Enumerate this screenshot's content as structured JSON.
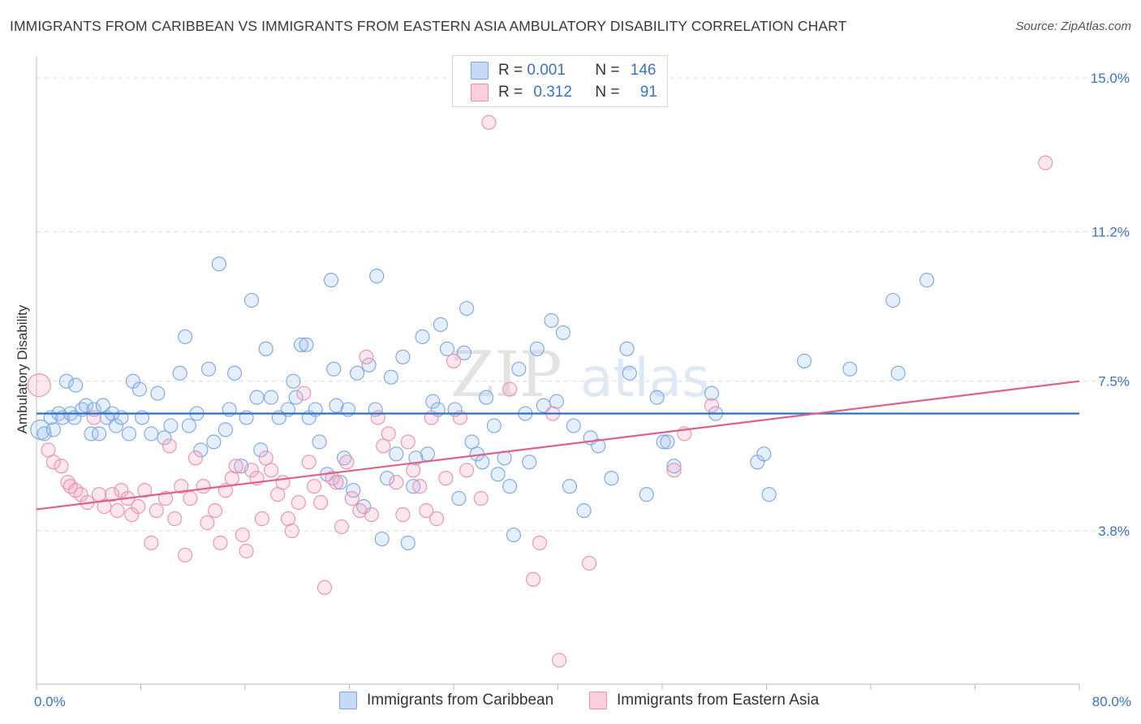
{
  "header": {
    "title": "IMMIGRANTS FROM CARIBBEAN VS IMMIGRANTS FROM EASTERN ASIA AMBULATORY DISABILITY CORRELATION CHART",
    "source": "Source: ZipAtlas.com"
  },
  "legend": {
    "r_label": "R =",
    "n_label": "N =",
    "series": [
      {
        "name": "Immigrants from Caribbean",
        "r": "0.001",
        "n": "146",
        "color": "#9bbef0"
      },
      {
        "name": "Immigrants from Eastern Asia",
        "r": "0.312",
        "n": "91",
        "color": "#f5a9bf"
      }
    ]
  },
  "watermark": {
    "zip": "ZIP",
    "atlas": "atlas"
  },
  "chart_data": {
    "type": "scatter",
    "title": "IMMIGRANTS FROM CARIBBEAN VS IMMIGRANTS FROM EASTERN ASIA AMBULATORY DISABILITY CORRELATION CHART",
    "xlabel": "",
    "ylabel": "Ambulatory Disability",
    "xlim": [
      0,
      80
    ],
    "ylim": [
      0,
      15.5
    ],
    "x_tick_labels": [
      "0.0%",
      "80.0%"
    ],
    "y_ticks": [
      3.8,
      7.5,
      11.2,
      15.0
    ],
    "y_tick_labels": [
      "3.8%",
      "7.5%",
      "11.2%",
      "15.0%"
    ],
    "grid": "horizontal dashed",
    "legend_position": "top-center",
    "series": [
      {
        "name": "Immigrants from Caribbean",
        "color": "#7aa6e6",
        "trend": {
          "x": [
            0,
            80
          ],
          "y": [
            6.7,
            6.7
          ]
        },
        "points": [
          [
            0.3,
            6.3
          ],
          [
            0.6,
            6.2
          ],
          [
            1.1,
            6.6
          ],
          [
            1.3,
            6.3
          ],
          [
            1.7,
            6.7
          ],
          [
            2.0,
            6.6
          ],
          [
            2.3,
            7.5
          ],
          [
            2.6,
            6.7
          ],
          [
            2.9,
            6.6
          ],
          [
            3.0,
            7.4
          ],
          [
            3.5,
            6.8
          ],
          [
            3.8,
            6.9
          ],
          [
            4.2,
            6.2
          ],
          [
            4.4,
            6.8
          ],
          [
            4.8,
            6.2
          ],
          [
            5.1,
            6.9
          ],
          [
            5.4,
            6.6
          ],
          [
            5.8,
            6.7
          ],
          [
            6.1,
            6.4
          ],
          [
            6.5,
            6.6
          ],
          [
            7.1,
            6.2
          ],
          [
            7.4,
            7.5
          ],
          [
            7.9,
            7.3
          ],
          [
            8.1,
            6.6
          ],
          [
            8.8,
            6.2
          ],
          [
            9.3,
            7.2
          ],
          [
            9.8,
            6.1
          ],
          [
            10.3,
            6.4
          ],
          [
            11.0,
            7.7
          ],
          [
            11.4,
            8.6
          ],
          [
            11.7,
            6.4
          ],
          [
            12.3,
            6.7
          ],
          [
            12.6,
            5.8
          ],
          [
            13.2,
            7.8
          ],
          [
            13.6,
            6.0
          ],
          [
            14.0,
            10.4
          ],
          [
            14.5,
            6.3
          ],
          [
            14.8,
            6.8
          ],
          [
            15.2,
            7.7
          ],
          [
            15.7,
            5.4
          ],
          [
            16.1,
            6.6
          ],
          [
            16.5,
            9.5
          ],
          [
            16.9,
            7.1
          ],
          [
            17.2,
            5.8
          ],
          [
            17.6,
            8.3
          ],
          [
            18.0,
            7.1
          ],
          [
            18.6,
            6.6
          ],
          [
            19.3,
            6.8
          ],
          [
            19.7,
            7.5
          ],
          [
            19.9,
            7.1
          ],
          [
            20.3,
            8.4
          ],
          [
            20.7,
            8.4
          ],
          [
            20.9,
            6.6
          ],
          [
            21.4,
            6.8
          ],
          [
            21.7,
            6.0
          ],
          [
            22.3,
            5.2
          ],
          [
            22.6,
            10.0
          ],
          [
            22.8,
            7.8
          ],
          [
            23.0,
            6.9
          ],
          [
            23.3,
            5.0
          ],
          [
            23.6,
            5.6
          ],
          [
            23.9,
            6.8
          ],
          [
            24.3,
            4.8
          ],
          [
            24.6,
            7.7
          ],
          [
            25.1,
            4.4
          ],
          [
            25.5,
            7.9
          ],
          [
            26.0,
            6.8
          ],
          [
            26.1,
            10.1
          ],
          [
            26.5,
            3.6
          ],
          [
            26.9,
            5.1
          ],
          [
            27.2,
            7.6
          ],
          [
            27.6,
            5.7
          ],
          [
            28.1,
            8.1
          ],
          [
            28.5,
            3.5
          ],
          [
            28.9,
            4.9
          ],
          [
            29.1,
            5.6
          ],
          [
            29.6,
            8.6
          ],
          [
            30.0,
            5.7
          ],
          [
            30.4,
            7.0
          ],
          [
            30.8,
            6.8
          ],
          [
            31.0,
            8.9
          ],
          [
            31.5,
            8.3
          ],
          [
            32.1,
            6.8
          ],
          [
            32.4,
            4.6
          ],
          [
            32.8,
            8.2
          ],
          [
            33.0,
            9.3
          ],
          [
            33.4,
            6.0
          ],
          [
            33.8,
            5.7
          ],
          [
            34.2,
            5.5
          ],
          [
            34.5,
            7.1
          ],
          [
            35.1,
            6.4
          ],
          [
            35.4,
            5.2
          ],
          [
            35.9,
            5.6
          ],
          [
            36.3,
            4.9
          ],
          [
            36.6,
            3.7
          ],
          [
            37.0,
            7.8
          ],
          [
            37.5,
            6.7
          ],
          [
            37.8,
            5.5
          ],
          [
            38.4,
            8.3
          ],
          [
            38.9,
            6.9
          ],
          [
            39.5,
            9.0
          ],
          [
            39.9,
            7.0
          ],
          [
            40.4,
            8.7
          ],
          [
            40.9,
            4.9
          ],
          [
            41.2,
            6.4
          ],
          [
            42.0,
            4.3
          ],
          [
            42.5,
            6.1
          ],
          [
            43.1,
            5.9
          ],
          [
            44.1,
            5.1
          ],
          [
            45.3,
            8.3
          ],
          [
            45.5,
            7.7
          ],
          [
            46.8,
            4.7
          ],
          [
            47.6,
            7.1
          ],
          [
            48.1,
            6.0
          ],
          [
            48.4,
            6.0
          ],
          [
            48.9,
            5.4
          ],
          [
            51.8,
            7.2
          ],
          [
            52.1,
            6.7
          ],
          [
            55.3,
            5.5
          ],
          [
            55.8,
            5.7
          ],
          [
            56.2,
            4.7
          ],
          [
            58.9,
            8.0
          ],
          [
            62.4,
            7.8
          ],
          [
            65.7,
            9.5
          ],
          [
            66.1,
            7.7
          ],
          [
            68.3,
            10.0
          ]
        ]
      },
      {
        "name": "Immigrants from Eastern Asia",
        "color": "#ef8fab",
        "trend": {
          "x": [
            0,
            80
          ],
          "y": [
            4.33,
            7.5
          ]
        },
        "points": [
          [
            0.2,
            7.4
          ],
          [
            0.9,
            5.8
          ],
          [
            1.3,
            5.5
          ],
          [
            1.9,
            5.4
          ],
          [
            2.4,
            5.0
          ],
          [
            2.6,
            4.9
          ],
          [
            3.0,
            4.8
          ],
          [
            3.4,
            4.7
          ],
          [
            3.9,
            4.5
          ],
          [
            4.4,
            6.6
          ],
          [
            4.8,
            4.7
          ],
          [
            5.2,
            4.4
          ],
          [
            5.8,
            4.7
          ],
          [
            6.2,
            4.3
          ],
          [
            6.5,
            4.8
          ],
          [
            7.0,
            4.6
          ],
          [
            7.3,
            4.2
          ],
          [
            7.8,
            4.4
          ],
          [
            8.3,
            4.8
          ],
          [
            8.8,
            3.5
          ],
          [
            9.2,
            4.3
          ],
          [
            9.9,
            4.6
          ],
          [
            10.2,
            5.9
          ],
          [
            10.6,
            4.1
          ],
          [
            11.1,
            4.9
          ],
          [
            11.4,
            3.2
          ],
          [
            11.8,
            4.6
          ],
          [
            12.2,
            5.6
          ],
          [
            12.8,
            4.9
          ],
          [
            13.1,
            4.0
          ],
          [
            13.7,
            4.3
          ],
          [
            14.1,
            3.5
          ],
          [
            14.5,
            4.8
          ],
          [
            15.0,
            5.1
          ],
          [
            15.3,
            5.4
          ],
          [
            15.8,
            3.7
          ],
          [
            16.1,
            3.3
          ],
          [
            16.5,
            5.3
          ],
          [
            16.9,
            5.1
          ],
          [
            17.3,
            4.1
          ],
          [
            17.6,
            5.6
          ],
          [
            18.0,
            5.3
          ],
          [
            18.5,
            4.7
          ],
          [
            18.9,
            5.0
          ],
          [
            19.3,
            4.1
          ],
          [
            19.6,
            3.8
          ],
          [
            20.1,
            4.5
          ],
          [
            20.5,
            7.2
          ],
          [
            20.9,
            5.5
          ],
          [
            21.3,
            4.9
          ],
          [
            21.8,
            4.5
          ],
          [
            22.1,
            2.4
          ],
          [
            22.7,
            5.1
          ],
          [
            23.0,
            5.0
          ],
          [
            23.4,
            3.9
          ],
          [
            23.8,
            5.5
          ],
          [
            24.2,
            4.6
          ],
          [
            24.8,
            4.3
          ],
          [
            25.3,
            8.1
          ],
          [
            25.7,
            4.2
          ],
          [
            26.2,
            6.6
          ],
          [
            26.6,
            5.9
          ],
          [
            27.0,
            6.2
          ],
          [
            27.6,
            5.0
          ],
          [
            28.1,
            4.2
          ],
          [
            28.5,
            6.0
          ],
          [
            28.9,
            5.3
          ],
          [
            29.4,
            4.9
          ],
          [
            29.9,
            4.3
          ],
          [
            30.3,
            6.6
          ],
          [
            30.7,
            4.1
          ],
          [
            31.4,
            5.1
          ],
          [
            32.0,
            8.0
          ],
          [
            32.5,
            6.6
          ],
          [
            33.0,
            5.3
          ],
          [
            34.1,
            4.6
          ],
          [
            34.7,
            13.9
          ],
          [
            36.3,
            7.3
          ],
          [
            38.1,
            2.6
          ],
          [
            38.6,
            3.5
          ],
          [
            39.6,
            6.7
          ],
          [
            40.1,
            0.6
          ],
          [
            42.4,
            3.0
          ],
          [
            48.9,
            5.3
          ],
          [
            49.7,
            6.2
          ],
          [
            51.8,
            6.9
          ],
          [
            77.4,
            12.9
          ]
        ]
      }
    ]
  }
}
